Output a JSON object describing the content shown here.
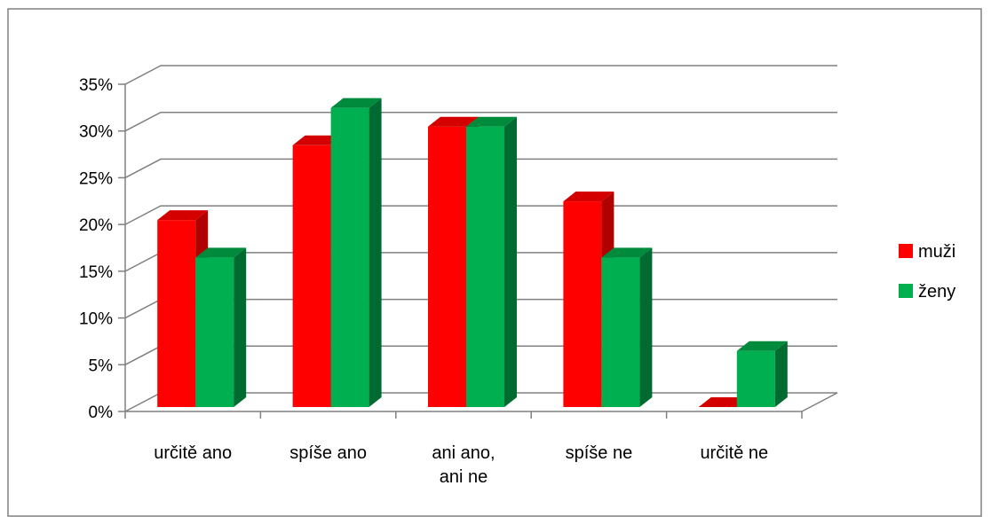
{
  "chart_data": {
    "type": "bar",
    "style": "3d-clustered-column",
    "categories": [
      [
        "určitě ano"
      ],
      [
        "spíše ano"
      ],
      [
        "ani ano,",
        "ani ne"
      ],
      [
        "spíše ne"
      ],
      [
        "určitě ne"
      ]
    ],
    "series": [
      {
        "name": "muži",
        "values": [
          20,
          28,
          30,
          22,
          0
        ],
        "color": "#ff0000",
        "side_color": "#b00000",
        "top_color": "#d40000"
      },
      {
        "name": "ženy",
        "values": [
          16,
          32,
          30,
          16,
          6
        ],
        "color": "#00b050",
        "side_color": "#006b30",
        "top_color": "#008a3c"
      }
    ],
    "ylim": [
      0,
      35
    ],
    "yticks": [
      {
        "value": 0,
        "label": "0%"
      },
      {
        "value": 5,
        "label": "5%"
      },
      {
        "value": 10,
        "label": "10%"
      },
      {
        "value": 15,
        "label": "15%"
      },
      {
        "value": 20,
        "label": "20%"
      },
      {
        "value": 25,
        "label": "25%"
      },
      {
        "value": 30,
        "label": "30%"
      },
      {
        "value": 35,
        "label": "35%"
      }
    ],
    "grid": true,
    "legend_position": "right",
    "title": "",
    "xlabel": "",
    "ylabel": "",
    "border_color": "#808080",
    "grid_color": "#808080"
  }
}
